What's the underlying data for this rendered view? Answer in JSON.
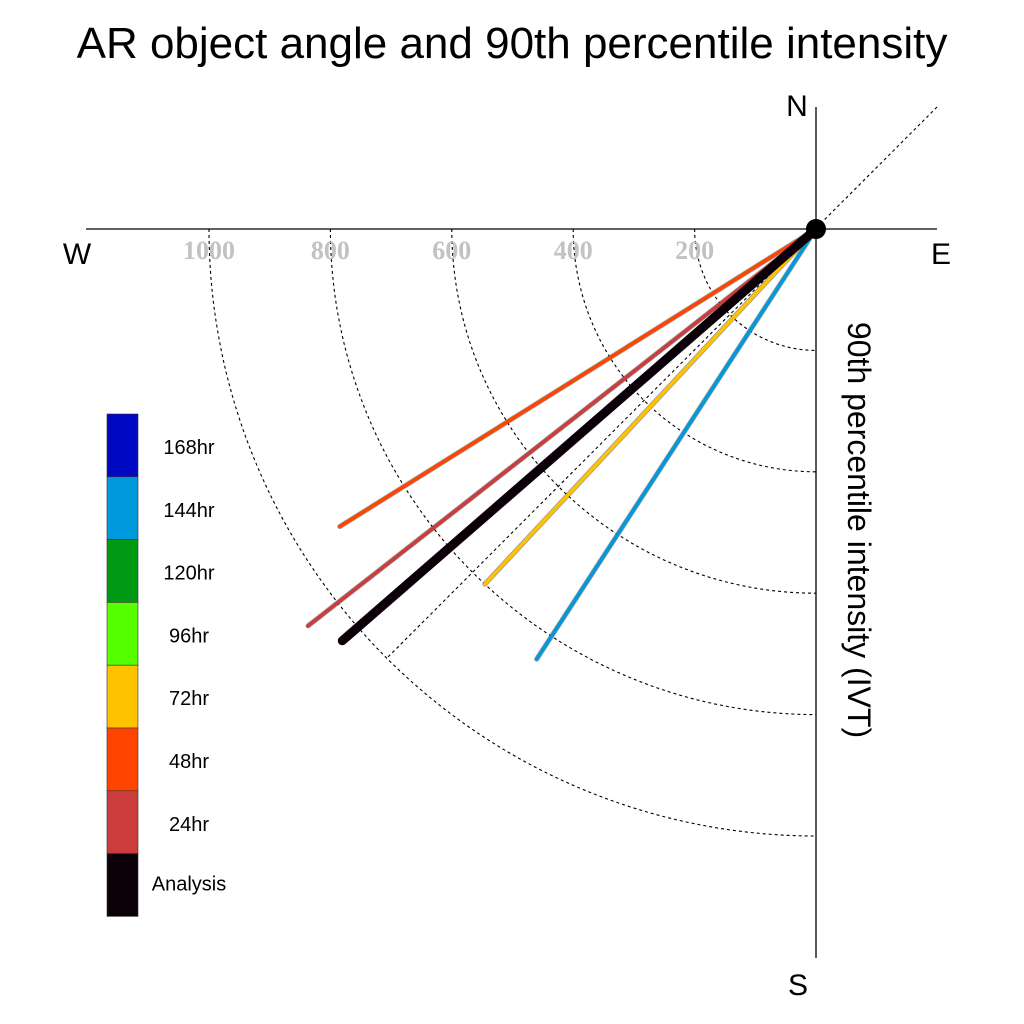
{
  "chart_data": {
    "type": "polar-vector",
    "title": "AR object angle and 90th percentile intensity",
    "compass": {
      "north": "N",
      "south": "S",
      "east": "E",
      "west": "W"
    },
    "radial_label": "90th percentile intensity (IVT)",
    "radial_ticks": [
      200,
      400,
      600,
      800,
      1000
    ],
    "radial_tick_labels": [
      "200",
      "400",
      "600",
      "800",
      "1000"
    ],
    "rmax": 1200,
    "grid": true,
    "legend": {
      "position": "left",
      "entries": [
        {
          "label": "168hr",
          "color": "#0008c1"
        },
        {
          "label": "144hr",
          "color": "#0099dd"
        },
        {
          "label": "120hr",
          "color": "#009914"
        },
        {
          "label": "96hr",
          "color": "#55ff00"
        },
        {
          "label": "72hr",
          "color": "#ffc200"
        },
        {
          "label": "48hr",
          "color": "#ff4400"
        },
        {
          "label": "24hr",
          "color": "#cc3c3c"
        },
        {
          "label": "Analysis",
          "color": "#0c0008"
        }
      ]
    },
    "series": [
      {
        "name": "144hr",
        "angle_deg": 213,
        "intensity": 845,
        "color": "#0099dd"
      },
      {
        "name": "72hr",
        "angle_deg": 223,
        "intensity": 800,
        "color": "#ffc200"
      },
      {
        "name": "48hr",
        "angle_deg": 238,
        "intensity": 925,
        "color": "#ff4400"
      },
      {
        "name": "24hr",
        "angle_deg": 232,
        "intensity": 1062,
        "color": "#cc3c3c"
      },
      {
        "name": "Analysis",
        "angle_deg": 229,
        "intensity": 1034,
        "color": "#0c0008"
      }
    ]
  }
}
